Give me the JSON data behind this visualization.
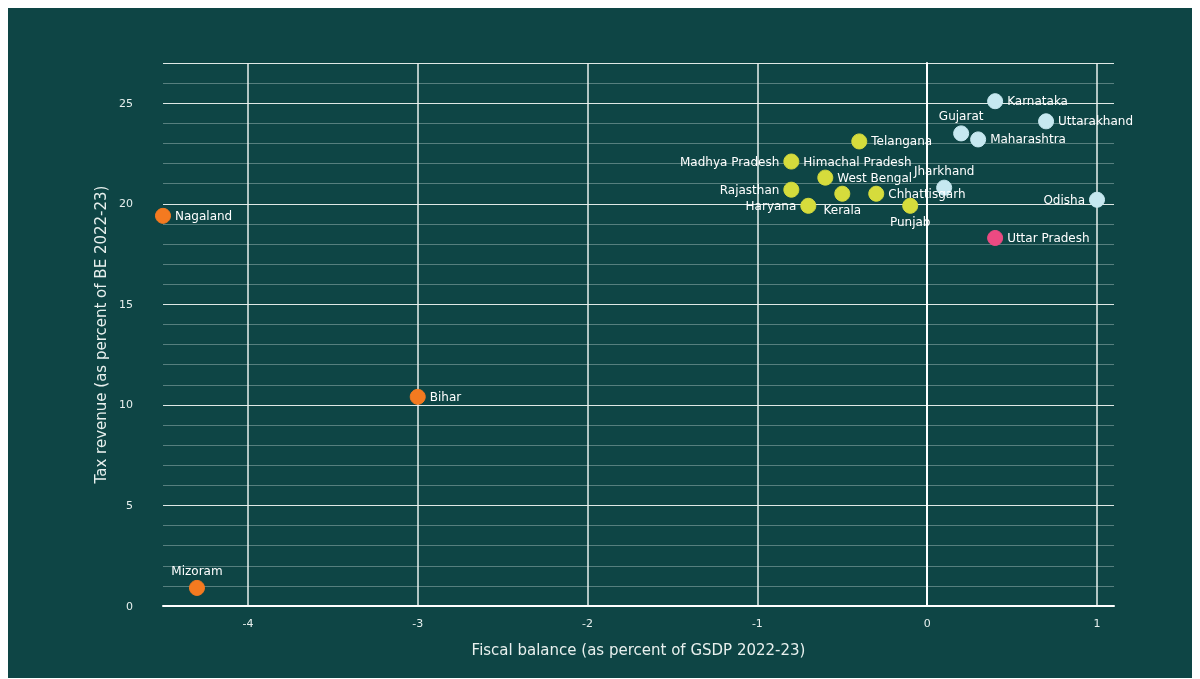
{
  "chart_data": {
    "type": "scatter",
    "xlabel": "Fiscal balance (as percent of GSDP 2022-23)",
    "ylabel": "Tax revenue (as percent of BE 2022-23)",
    "series": [
      {
        "color": "#f47a20",
        "x": [
          -4.5,
          -4.3,
          -3
        ],
        "values": [
          19.4,
          0.9,
          10.4
        ]
      },
      {
        "color": "#d6dc3c",
        "x": [
          -0.4,
          -0.8,
          -0.6,
          -0.8,
          -0.5,
          -0.7,
          -0.3,
          -0.1
        ],
        "values": [
          23.1,
          22.1,
          21.3,
          20.7,
          20.5,
          19.9,
          20.5,
          19.9
        ]
      },
      {
        "color": "#c6e8f0",
        "x": [
          0.4,
          0.7,
          0.2,
          0.3,
          0.1,
          1.0
        ],
        "values": [
          25.1,
          24.1,
          23.5,
          23.2,
          20.8,
          20.2
        ]
      },
      {
        "color": "#ec4a82",
        "x": [
          0.4
        ],
        "values": [
          18.3
        ]
      }
    ],
    "annotations": [
      {
        "text": "Nagaland",
        "x": -4.5,
        "y": 19.4
      },
      {
        "text": "Mizoram",
        "x": -4.3,
        "y": 0.9
      },
      {
        "text": "Bihar",
        "x": -3,
        "y": 10.4
      },
      {
        "text": "Karnataka",
        "x": 0.4,
        "y": 25.1
      },
      {
        "text": "Uttarakhand",
        "x": 0.7,
        "y": 24.1
      },
      {
        "text": "Gujarat",
        "x": 0.2,
        "y": 23.5
      },
      {
        "text": "Maharashtra",
        "x": 0.3,
        "y": 23.2
      },
      {
        "text": "Telangana",
        "x": -0.4,
        "y": 23.1
      },
      {
        "text": "Madhya Pradesh",
        "x": -0.8,
        "y": 22.1
      },
      {
        "text": "Himachal Pradesh",
        "x": -0.8,
        "y": 22.1
      },
      {
        "text": "West Bengal",
        "x": -0.6,
        "y": 21.3
      },
      {
        "text": "Rajasthan",
        "x": -0.8,
        "y": 20.7
      },
      {
        "text": "Kerala",
        "x": -0.5,
        "y": 20.5
      },
      {
        "text": "Haryana",
        "x": -0.7,
        "y": 19.9
      },
      {
        "text": "Chhattisgarh",
        "x": -0.3,
        "y": 20.5
      },
      {
        "text": "Punjab",
        "x": -0.1,
        "y": 19.9
      },
      {
        "text": "Jharkhand",
        "x": 0.1,
        "y": 20.8
      },
      {
        "text": "Odisha",
        "x": 1.0,
        "y": 20.2
      },
      {
        "text": "Uttar Pradesh",
        "x": 0.4,
        "y": 18.3
      }
    ],
    "xlim": [
      -4.5,
      1.1
    ],
    "xticks": [
      -4,
      -3,
      -2,
      -1,
      0,
      1
    ],
    "ylim": [
      0,
      27
    ],
    "yticks": [
      0,
      5,
      10,
      15,
      20,
      25
    ],
    "grid": true,
    "marker": "circle"
  }
}
